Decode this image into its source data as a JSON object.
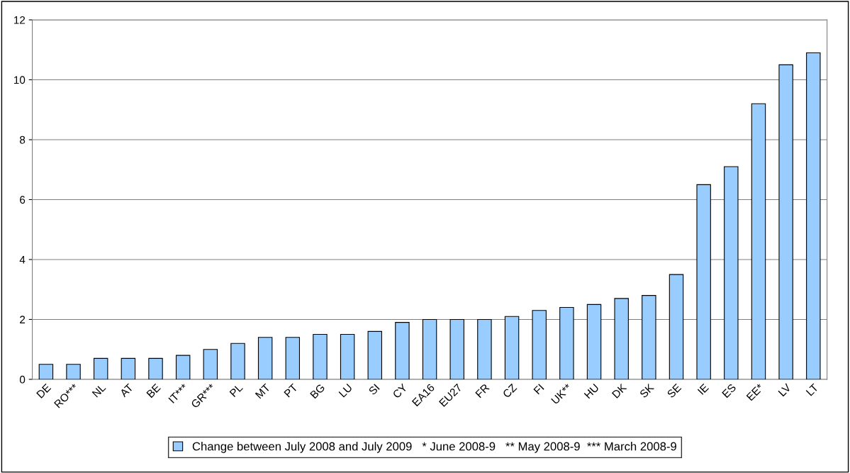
{
  "chart_data": {
    "type": "bar",
    "categories": [
      "DE",
      "RO***",
      "NL",
      "AT",
      "BE",
      "IT***",
      "GR***",
      "PL",
      "MT",
      "PT",
      "BG",
      "LU",
      "SI",
      "CY",
      "EA16",
      "EU27",
      "FR",
      "CZ",
      "FI",
      "UK**",
      "HU",
      "DK",
      "SK",
      "SE",
      "IE",
      "ES",
      "EE*",
      "LV",
      "LT"
    ],
    "series": [
      {
        "name": "Change between July 2008 and July 2009   * June 2008-9   ** May 2008-9  *** March 2008-9",
        "color": "#99ccff",
        "values": [
          0.5,
          0.5,
          0.7,
          0.7,
          0.7,
          0.8,
          1.0,
          1.2,
          1.4,
          1.4,
          1.5,
          1.5,
          1.6,
          1.9,
          2.0,
          2.0,
          2.0,
          2.1,
          2.3,
          2.4,
          2.5,
          2.7,
          2.8,
          3.5,
          6.5,
          7.1,
          9.2,
          10.5,
          10.9
        ]
      }
    ],
    "ylim": [
      0,
      12
    ],
    "yticks": [
      0,
      2,
      4,
      6,
      8,
      10,
      12
    ],
    "grid": "y",
    "legend": "bottom"
  }
}
